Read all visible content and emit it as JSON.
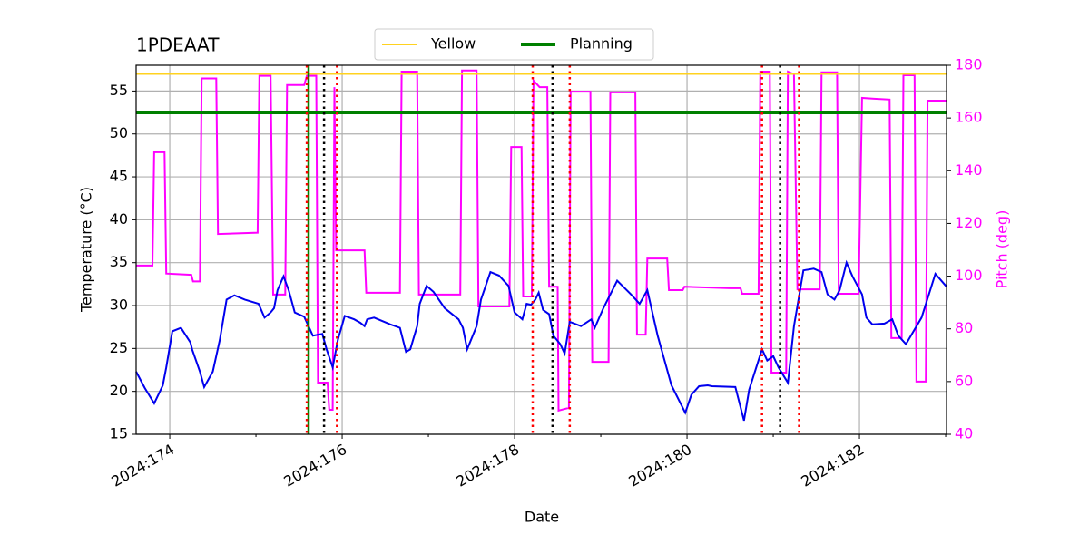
{
  "chart_data": {
    "type": "line",
    "title": "1PDEAAT",
    "xlabel": "Date",
    "ylabel": "Temperature (°C)",
    "y2label": "Pitch (deg)",
    "y2color": "#ff00ff",
    "xlim": [
      173.61,
      183.01
    ],
    "xticks": [
      {
        "value": 174,
        "label": "2024:174"
      },
      {
        "value": 176,
        "label": "2024:176"
      },
      {
        "value": 178,
        "label": "2024:178"
      },
      {
        "value": 180,
        "label": "2024:180"
      },
      {
        "value": 182,
        "label": "2024:182"
      }
    ],
    "xminor": [
      175,
      177,
      179,
      181,
      183
    ],
    "ylim": [
      15,
      58
    ],
    "yticks": [
      15,
      20,
      25,
      30,
      35,
      40,
      45,
      50,
      55
    ],
    "y2lim": [
      40,
      180
    ],
    "y2ticks": [
      40,
      60,
      80,
      100,
      120,
      140,
      160,
      180
    ],
    "grid": true,
    "legend": "upper center",
    "hlines": [
      {
        "name": "Yellow",
        "color": "#ffd21f",
        "value": 57
      },
      {
        "name": "Planning",
        "color": "#008000",
        "value": 52.5
      }
    ],
    "vlines": [
      {
        "color": "#008000",
        "style": "solid",
        "x": [
          175.61
        ]
      },
      {
        "color": "#ff0000",
        "style": "dotted",
        "x": [
          175.59,
          175.94,
          178.21,
          178.64,
          180.87,
          181.3
        ]
      },
      {
        "color": "#000000",
        "style": "dotted",
        "x": [
          175.79,
          178.44,
          181.08
        ]
      }
    ],
    "series": [
      {
        "color": "#ff00ff",
        "axis": "y2",
        "x": [
          173.61,
          173.8,
          173.82,
          173.94,
          173.96,
          174.25,
          174.27,
          174.35,
          174.37,
          174.54,
          174.56,
          175.02,
          175.04,
          175.17,
          175.2,
          175.34,
          175.36,
          175.56,
          175.59,
          175.7,
          175.72,
          175.83,
          175.85,
          175.89,
          175.91,
          175.93,
          175.95,
          176.26,
          176.28,
          176.67,
          176.69,
          176.87,
          176.89,
          177.37,
          177.39,
          177.56,
          177.58,
          177.94,
          177.96,
          178.08,
          178.1,
          178.2,
          178.22,
          178.29,
          178.38,
          178.4,
          178.5,
          178.51,
          178.63,
          178.65,
          178.88,
          178.9,
          179.09,
          179.11,
          179.4,
          179.42,
          179.52,
          179.54,
          179.77,
          179.79,
          179.95,
          179.97,
          180.5,
          180.62,
          180.64,
          180.83,
          180.85,
          180.96,
          180.98,
          181.15,
          181.17,
          181.24,
          181.28,
          181.54,
          181.56,
          181.74,
          181.76,
          181.99,
          182.03,
          182.17,
          182.35,
          182.37,
          182.49,
          182.51,
          182.64,
          182.66,
          182.77,
          182.79,
          183.01
        ],
        "values": [
          104,
          104,
          147,
          147,
          101,
          100.5,
          98,
          98,
          175,
          175,
          116,
          116.5,
          176,
          176,
          93,
          93,
          172.5,
          172.5,
          176,
          176,
          59.6,
          59.6,
          49.3,
          49.3,
          171.7,
          109.8,
          109.8,
          109.8,
          93.7,
          93.7,
          177.6,
          177.6,
          93,
          93,
          178,
          178,
          88.5,
          88.5,
          149,
          149,
          92.3,
          92.3,
          174.2,
          171.7,
          171.7,
          96,
          96,
          49,
          50,
          170,
          170,
          67.5,
          67.5,
          169.7,
          169.7,
          77.8,
          77.8,
          106.7,
          106.7,
          94.7,
          94.7,
          96,
          95.4,
          95.4,
          93.3,
          93.3,
          177.6,
          177.6,
          63.4,
          63.4,
          177.6,
          176.6,
          95,
          95,
          177.3,
          177.3,
          93.3,
          93.3,
          167.6,
          167.3,
          167,
          76.5,
          76.5,
          176.2,
          176.2,
          60,
          60,
          166.6,
          166.6
        ]
      },
      {
        "color": "#0000ee",
        "axis": "y",
        "x": [
          173.61,
          173.71,
          173.82,
          173.92,
          173.96,
          174.03,
          174.13,
          174.24,
          174.26,
          174.35,
          174.4,
          174.5,
          174.58,
          174.66,
          174.75,
          174.87,
          175.03,
          175.1,
          175.17,
          175.21,
          175.25,
          175.32,
          175.38,
          175.45,
          175.56,
          175.66,
          175.77,
          175.82,
          175.89,
          175.95,
          176.03,
          176.14,
          176.21,
          176.26,
          176.29,
          176.37,
          176.56,
          176.67,
          176.74,
          176.79,
          176.87,
          176.9,
          176.98,
          177.06,
          177.19,
          177.35,
          177.4,
          177.45,
          177.56,
          177.61,
          177.72,
          177.82,
          177.93,
          178,
          178.09,
          178.14,
          178.19,
          178.24,
          178.28,
          178.33,
          178.4,
          178.45,
          178.53,
          178.58,
          178.64,
          178.77,
          178.89,
          178.93,
          179.03,
          179.19,
          179.35,
          179.45,
          179.54,
          179.66,
          179.82,
          179.98,
          180.05,
          180.14,
          180.24,
          180.29,
          180.56,
          180.66,
          180.72,
          180.87,
          180.93,
          181,
          181.06,
          181.17,
          181.24,
          181.35,
          181.47,
          181.56,
          181.63,
          181.71,
          181.77,
          181.85,
          181.92,
          182.03,
          182.08,
          182.15,
          182.29,
          182.38,
          182.45,
          182.54,
          182.72,
          182.88,
          183.01
        ],
        "values": [
          22.3,
          20.4,
          18.6,
          20.7,
          22.8,
          27,
          27.4,
          25.7,
          24.9,
          22.3,
          20.5,
          22.3,
          26,
          30.7,
          31.2,
          30.7,
          30.2,
          28.6,
          29.2,
          29.7,
          31.8,
          33.4,
          31.8,
          29.2,
          28.7,
          26.5,
          26.7,
          24.9,
          22.8,
          26,
          28.8,
          28.4,
          28,
          27.6,
          28.4,
          28.6,
          27.8,
          27.4,
          24.6,
          24.9,
          27.6,
          30.2,
          32.3,
          31.6,
          29.7,
          28.4,
          27.4,
          24.9,
          27.6,
          30.7,
          33.9,
          33.5,
          32.3,
          29.2,
          28.4,
          30.2,
          30.1,
          30.7,
          31.5,
          29.5,
          29,
          26.5,
          25.5,
          24.4,
          28.1,
          27.6,
          28.4,
          27.4,
          29.7,
          32.9,
          31.3,
          30.2,
          31.8,
          26.5,
          20.7,
          17.5,
          19.6,
          20.6,
          20.7,
          20.6,
          20.5,
          16.6,
          20.2,
          24.9,
          23.6,
          24.1,
          22.8,
          21,
          27.6,
          34.1,
          34.3,
          33.9,
          31.3,
          30.7,
          31.8,
          35,
          33.4,
          31.3,
          28.6,
          27.8,
          27.9,
          28.4,
          26.5,
          25.5,
          28.6,
          33.7,
          32.2
        ]
      }
    ]
  }
}
